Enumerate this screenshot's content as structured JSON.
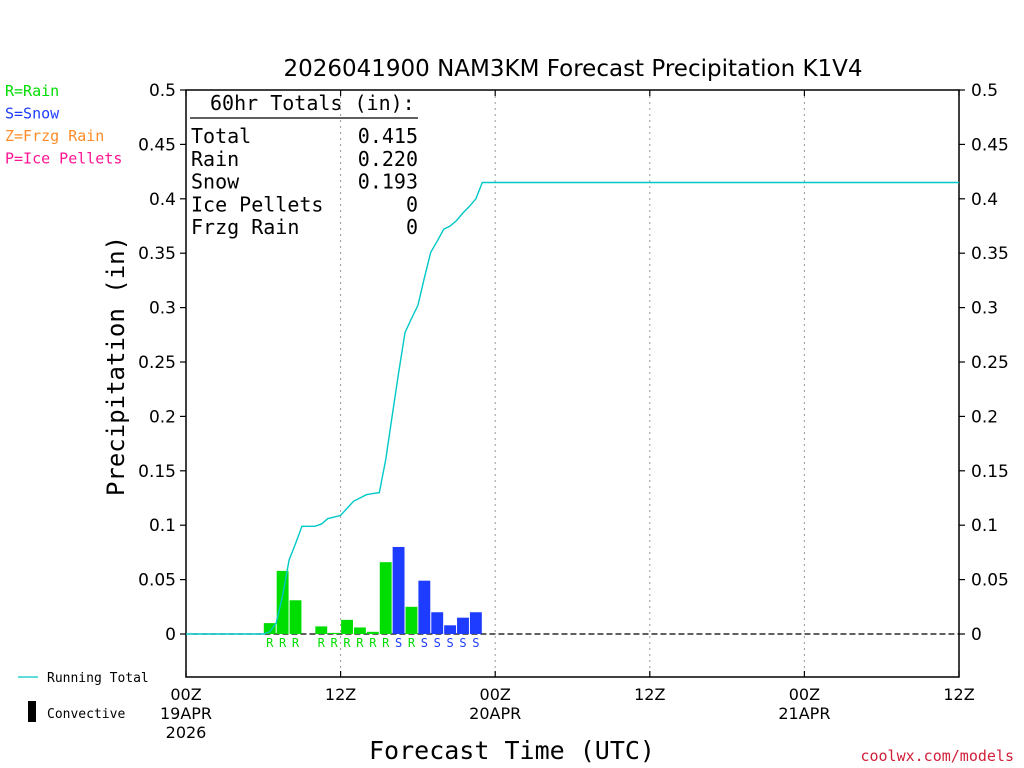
{
  "chart_data": {
    "type": "bar",
    "title": "2026041900 NAM3KM Forecast Precipitation K1V4",
    "xlabel": "Forecast Time (UTC)",
    "ylabel": "Precipitation (in)",
    "ylim": [
      -0.04,
      0.5
    ],
    "yticks": [
      "0.5",
      "0.45",
      "0.4",
      "0.35",
      "0.3",
      "0.25",
      "0.2",
      "0.15",
      "0.1",
      "0.05",
      "0"
    ],
    "ytick_values": [
      0.5,
      0.45,
      0.4,
      0.35,
      0.3,
      0.25,
      0.2,
      0.15,
      0.1,
      0.05,
      0
    ],
    "xlim_hours": [
      0,
      60
    ],
    "xticks": [
      {
        "hour": 0,
        "label": "00Z",
        "date": "19APR",
        "year": "2026"
      },
      {
        "hour": 12,
        "label": "12Z",
        "date": "",
        "year": ""
      },
      {
        "hour": 24,
        "label": "00Z",
        "date": "20APR",
        "year": ""
      },
      {
        "hour": 36,
        "label": "12Z",
        "date": "",
        "year": ""
      },
      {
        "hour": 48,
        "label": "00Z",
        "date": "21APR",
        "year": ""
      },
      {
        "hour": 60,
        "label": "12Z",
        "date": "",
        "year": ""
      }
    ],
    "gridlines_hours": [
      12,
      24,
      36,
      48
    ],
    "legend_types": [
      {
        "label": "R=Rain",
        "color": "#00dd00"
      },
      {
        "label": "S=Snow",
        "color": "#1e3cff"
      },
      {
        "label": "Z=Frzg Rain",
        "color": "#ff8c28"
      },
      {
        "label": "P=Ice Pellets",
        "color": "#ff1493"
      }
    ],
    "legend_lines": [
      {
        "label": "Running Total",
        "color": "#00c8c8"
      },
      {
        "label": "Convective",
        "color": "#000000"
      }
    ],
    "totals_box": {
      "header": "60hr Totals (in):",
      "rows": [
        {
          "label": "Total",
          "value": "0.415"
        },
        {
          "label": "Rain",
          "value": "0.220"
        },
        {
          "label": "Snow",
          "value": "0.193"
        },
        {
          "label": "Ice Pellets",
          "value": "0"
        },
        {
          "label": "Frzg Rain",
          "value": "0"
        }
      ]
    },
    "bars": [
      {
        "hour": 6.5,
        "value": 0.01,
        "type": "R"
      },
      {
        "hour": 7.5,
        "value": 0.058,
        "type": "R"
      },
      {
        "hour": 8.5,
        "value": 0.031,
        "type": "R"
      },
      {
        "hour": 10.5,
        "value": 0.007,
        "type": "R"
      },
      {
        "hour": 11.5,
        "value": 0.001,
        "type": "R"
      },
      {
        "hour": 12.5,
        "value": 0.013,
        "type": "R"
      },
      {
        "hour": 13.5,
        "value": 0.006,
        "type": "R"
      },
      {
        "hour": 14.5,
        "value": 0.002,
        "type": "R"
      },
      {
        "hour": 15.5,
        "value": 0.066,
        "type": "R"
      },
      {
        "hour": 16.5,
        "value": 0.08,
        "type": "S"
      },
      {
        "hour": 17.5,
        "value": 0.025,
        "type": "R"
      },
      {
        "hour": 18.5,
        "value": 0.049,
        "type": "S"
      },
      {
        "hour": 19.5,
        "value": 0.02,
        "type": "S"
      },
      {
        "hour": 20.5,
        "value": 0.008,
        "type": "S"
      },
      {
        "hour": 21.5,
        "value": 0.015,
        "type": "S"
      },
      {
        "hour": 22.5,
        "value": 0.02,
        "type": "S"
      }
    ],
    "type_letters": [
      {
        "hour": 6.5,
        "letter": "R"
      },
      {
        "hour": 7.5,
        "letter": "R"
      },
      {
        "hour": 8.5,
        "letter": "R"
      },
      {
        "hour": 10.5,
        "letter": "R"
      },
      {
        "hour": 11.5,
        "letter": "R"
      },
      {
        "hour": 12.5,
        "letter": "R"
      },
      {
        "hour": 13.5,
        "letter": "R"
      },
      {
        "hour": 14.5,
        "letter": "R"
      },
      {
        "hour": 15.5,
        "letter": "R"
      },
      {
        "hour": 16.5,
        "letter": "S"
      },
      {
        "hour": 17.5,
        "letter": "R"
      },
      {
        "hour": 18.5,
        "letter": "S"
      },
      {
        "hour": 19.5,
        "letter": "S"
      },
      {
        "hour": 20.5,
        "letter": "S"
      },
      {
        "hour": 21.5,
        "letter": "S"
      },
      {
        "hour": 22.5,
        "letter": "S"
      }
    ],
    "running_total": {
      "hours": [
        0,
        1,
        2,
        3,
        4,
        5,
        6,
        6.5,
        7,
        7.5,
        8,
        8.5,
        9,
        10,
        10.5,
        11,
        12,
        13,
        14,
        14.5,
        15,
        15.5,
        16,
        16.5,
        17,
        17.5,
        18,
        18.5,
        19,
        19.5,
        20,
        20.5,
        21,
        21.5,
        22,
        22.5,
        23,
        24,
        36,
        48,
        60
      ],
      "values": [
        0,
        0,
        0,
        0,
        0,
        0,
        0,
        0.002,
        0.01,
        0.035,
        0.068,
        0.083,
        0.099,
        0.099,
        0.101,
        0.106,
        0.109,
        0.122,
        0.128,
        0.129,
        0.13,
        0.16,
        0.2,
        0.24,
        0.277,
        0.29,
        0.302,
        0.327,
        0.351,
        0.361,
        0.372,
        0.375,
        0.38,
        0.387,
        0.393,
        0.4,
        0.415,
        0.415,
        0.415,
        0.415,
        0.415
      ]
    }
  },
  "footer": {
    "credit": "coolwx.com/models"
  }
}
